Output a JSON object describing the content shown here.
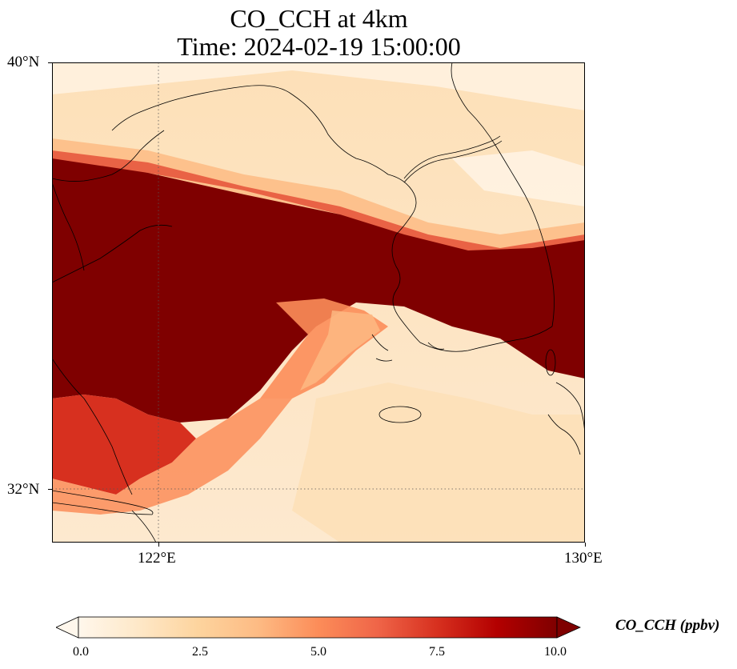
{
  "title": {
    "line1": "CO_CCH at 4km",
    "line2": "Time: 2024-02-19 15:00:00"
  },
  "axes": {
    "lat_ticks": [
      "40°N",
      "32°N"
    ],
    "lon_ticks": [
      "122°E",
      "130°E"
    ],
    "lat_range": [
      31,
      40
    ],
    "lon_range": [
      120,
      130
    ],
    "gridlines": "dotted"
  },
  "colorbar": {
    "label": "CO_CCH (ppbv)",
    "ticks": [
      "0.0",
      "2.5",
      "5.0",
      "7.5",
      "10.0"
    ],
    "range": [
      0,
      10
    ],
    "colormap": "OrRd",
    "extend": "both",
    "colors": [
      "#fff7ec",
      "#fee8c8",
      "#fdd49e",
      "#fdbb84",
      "#fc8d59",
      "#ef6548",
      "#d7301f",
      "#b30000",
      "#7f0000"
    ]
  },
  "map": {
    "field_description_colors": {
      "max": "#7f0000",
      "low": "#fde4c2"
    }
  }
}
